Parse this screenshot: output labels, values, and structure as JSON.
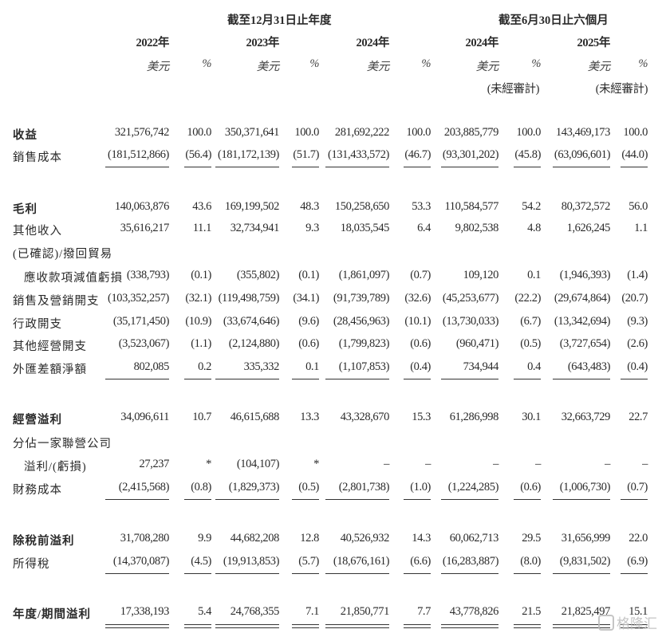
{
  "header": {
    "group_annual": "截至12月31日止年度",
    "group_interim": "截至6月30日止六個月",
    "years": [
      "2022年",
      "2023年",
      "2024年",
      "2024年",
      "2025年"
    ],
    "unit_amount": "美元",
    "unit_pct": "%",
    "unaudited": "(未經審計)"
  },
  "rows": [
    {
      "label": "收益",
      "bold": true,
      "values": [
        "321,576,742",
        "100.0",
        "350,371,641",
        "100.0",
        "281,692,222",
        "100.0",
        "203,885,779",
        "100.0",
        "143,469,173",
        "100.0"
      ]
    },
    {
      "label": "銷售成本",
      "values": [
        "(181,512,866)",
        "(56.4)",
        "(181,172,139)",
        "(51.7)",
        "(131,433,572)",
        "(46.7)",
        "(93,301,202)",
        "(45.8)",
        "(63,096,601)",
        "(44.0)"
      ],
      "rule": "single"
    },
    {
      "label": "毛利",
      "bold": true,
      "values": [
        "140,063,876",
        "43.6",
        "169,199,502",
        "48.3",
        "150,258,650",
        "53.3",
        "110,584,577",
        "54.2",
        "80,372,572",
        "56.0"
      ]
    },
    {
      "label": "其他收入",
      "values": [
        "35,616,217",
        "11.1",
        "32,734,941",
        "9.3",
        "18,035,545",
        "6.4",
        "9,802,538",
        "4.8",
        "1,626,245",
        "1.1"
      ]
    },
    {
      "label": "(已確認)/撥回貿易",
      "values": []
    },
    {
      "label": "應收款項減值虧損",
      "indent": true,
      "values": [
        "(338,793)",
        "(0.1)",
        "(355,802)",
        "(0.1)",
        "(1,861,097)",
        "(0.7)",
        "109,120",
        "0.1",
        "(1,946,393)",
        "(1.4)"
      ]
    },
    {
      "label": "銷售及營銷開支",
      "values": [
        "(103,352,257)",
        "(32.1)",
        "(119,498,759)",
        "(34.1)",
        "(91,739,789)",
        "(32.6)",
        "(45,253,677)",
        "(22.2)",
        "(29,674,864)",
        "(20.7)"
      ]
    },
    {
      "label": "行政開支",
      "values": [
        "(35,171,450)",
        "(10.9)",
        "(33,674,646)",
        "(9.6)",
        "(28,456,963)",
        "(10.1)",
        "(13,730,033)",
        "(6.7)",
        "(13,342,694)",
        "(9.3)"
      ]
    },
    {
      "label": "其他經營開支",
      "values": [
        "(3,523,067)",
        "(1.1)",
        "(2,124,880)",
        "(0.6)",
        "(1,799,823)",
        "(0.6)",
        "(960,471)",
        "(0.5)",
        "(3,727,654)",
        "(2.6)"
      ]
    },
    {
      "label": "外匯差額淨額",
      "values": [
        "802,085",
        "0.2",
        "335,332",
        "0.1",
        "(1,107,853)",
        "(0.4)",
        "734,944",
        "0.4",
        "(643,483)",
        "(0.4)"
      ],
      "rule": "single"
    },
    {
      "label": "經營溢利",
      "bold": true,
      "values": [
        "34,096,611",
        "10.7",
        "46,615,688",
        "13.3",
        "43,328,670",
        "15.3",
        "61,286,998",
        "30.1",
        "32,663,729",
        "22.7"
      ]
    },
    {
      "label": "分佔一家聯營公司",
      "values": []
    },
    {
      "label": "溢利/(虧損)",
      "indent": true,
      "values": [
        "27,237",
        "*",
        "(104,107)",
        "*",
        "–",
        "–",
        "–",
        "–",
        "–",
        "–"
      ]
    },
    {
      "label": "財務成本",
      "values": [
        "(2,415,568)",
        "(0.8)",
        "(1,829,373)",
        "(0.5)",
        "(2,801,738)",
        "(1.0)",
        "(1,224,285)",
        "(0.6)",
        "(1,006,730)",
        "(0.7)"
      ],
      "rule": "single"
    },
    {
      "label": "除稅前溢利",
      "bold": true,
      "values": [
        "31,708,280",
        "9.9",
        "44,682,208",
        "12.8",
        "40,526,932",
        "14.3",
        "60,062,713",
        "29.5",
        "31,656,999",
        "22.0"
      ]
    },
    {
      "label": "所得稅",
      "values": [
        "(14,370,087)",
        "(4.5)",
        "(19,913,853)",
        "(5.7)",
        "(18,676,161)",
        "(6.6)",
        "(16,283,887)",
        "(8.0)",
        "(9,831,502)",
        "(6.9)"
      ],
      "rule": "single"
    },
    {
      "label": "年度/期間溢利",
      "bold": true,
      "values": [
        "17,338,193",
        "5.4",
        "24,768,355",
        "7.1",
        "21,850,771",
        "7.7",
        "43,778,826",
        "21.5",
        "21,825,497",
        "15.1"
      ],
      "rule": "double"
    }
  ],
  "watermark": "格隆汇"
}
